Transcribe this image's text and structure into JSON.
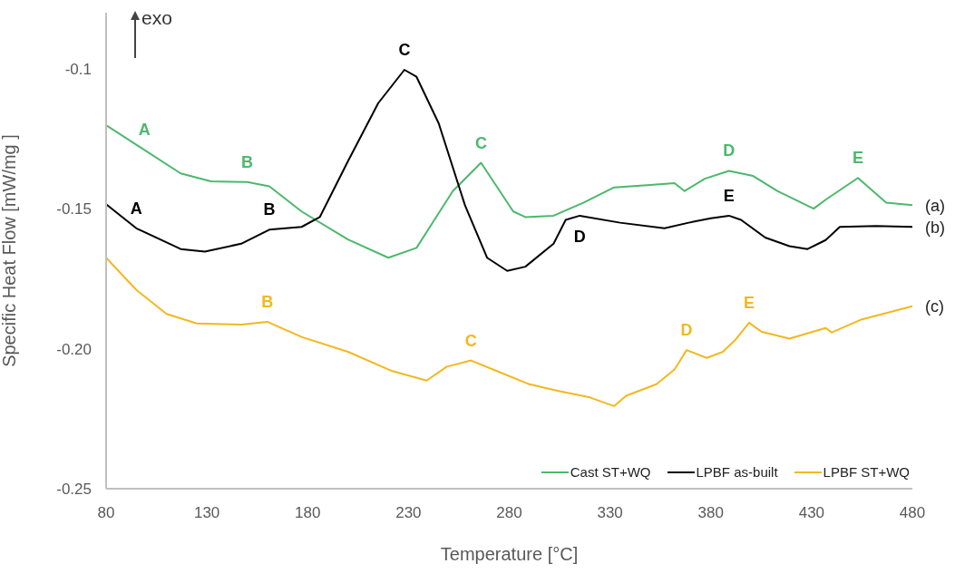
{
  "chart_data": {
    "type": "line",
    "xlabel": "Temperature [°C]",
    "ylabel": "Specific Heat Flow [mW/mg ]",
    "xlim": [
      80,
      480
    ],
    "xticks": [
      80,
      130,
      180,
      230,
      280,
      330,
      380,
      430,
      480
    ],
    "ylim": [
      -0.25,
      -0.08
    ],
    "yticks": [
      -0.1,
      -0.15,
      {
        "value": -0.2,
        "label": "-0.20"
      },
      {
        "value": -0.25,
        "label": "-0.25"
      }
    ],
    "grid": false,
    "legend": "bottom right",
    "marker": "none",
    "line_style": "solid",
    "series": [
      {
        "name": "Cast ST+WQ",
        "color": "#4cb86c",
        "x": [
          80,
          99,
          117,
          132,
          150,
          161,
          177,
          200,
          220,
          234,
          252,
          266,
          282,
          288,
          302,
          317,
          332,
          350,
          362,
          367,
          377,
          389,
          401,
          413,
          431,
          437,
          453,
          467,
          480
        ],
        "values": [
          -0.1202,
          -0.129,
          -0.1374,
          -0.1402,
          -0.1405,
          -0.142,
          -0.151,
          -0.161,
          -0.1675,
          -0.164,
          -0.1437,
          -0.1336,
          -0.151,
          -0.153,
          -0.1525,
          -0.1478,
          -0.1424,
          -0.1415,
          -0.1409,
          -0.1437,
          -0.1393,
          -0.1365,
          -0.1383,
          -0.1437,
          -0.15,
          -0.1468,
          -0.139,
          -0.1478,
          -0.1487
        ]
      },
      {
        "name": "LPBF as-built",
        "color": "#000000",
        "x": [
          80,
          95,
          117,
          129,
          147,
          161,
          177,
          186,
          200,
          215,
          228,
          234,
          245,
          258,
          269,
          279,
          288,
          302,
          308,
          315,
          335,
          357,
          369,
          380,
          389,
          395,
          407,
          419,
          428,
          437,
          444,
          462,
          480
        ],
        "values": [
          -0.1484,
          -0.157,
          -0.1644,
          -0.1653,
          -0.1625,
          -0.1575,
          -0.1565,
          -0.153,
          -0.133,
          -0.1123,
          -0.1004,
          -0.1029,
          -0.1195,
          -0.1487,
          -0.1675,
          -0.1722,
          -0.1707,
          -0.1625,
          -0.154,
          -0.1525,
          -0.155,
          -0.157,
          -0.155,
          -0.1534,
          -0.1525,
          -0.154,
          -0.1603,
          -0.1634,
          -0.1644,
          -0.1612,
          -0.1565,
          -0.1562,
          -0.1565
        ]
      },
      {
        "name": "LPBF ST+WQ",
        "color": "#f2b81e",
        "x": [
          80,
          95,
          110,
          125,
          147,
          160,
          177,
          200,
          222,
          239,
          249,
          261,
          275,
          290,
          305,
          320,
          332,
          338,
          353,
          362,
          368,
          378,
          386,
          392,
          399,
          405,
          419,
          437,
          440,
          455,
          480
        ],
        "values": [
          -0.1675,
          -0.179,
          -0.1876,
          -0.191,
          -0.1914,
          -0.1904,
          -0.1958,
          -0.2011,
          -0.208,
          -0.2114,
          -0.2064,
          -0.2042,
          -0.2083,
          -0.2127,
          -0.2152,
          -0.2174,
          -0.2205,
          -0.2168,
          -0.2127,
          -0.2074,
          -0.2005,
          -0.2033,
          -0.2011,
          -0.197,
          -0.1907,
          -0.1939,
          -0.1964,
          -0.1926,
          -0.1942,
          -0.1895,
          -0.1848
        ]
      }
    ],
    "annotations": [
      "exo",
      "(a)",
      "(b)",
      "(c)",
      {
        "text": "A",
        "x": 99,
        "y": -0.129
      },
      {
        "text": "B",
        "x": 150,
        "y": -0.1405
      },
      {
        "text": "C",
        "x": 266,
        "y": -0.1336
      },
      {
        "text": "D",
        "x": 389,
        "y": -0.1365
      },
      {
        "text": "E",
        "x": 453,
        "y": -0.139
      },
      {
        "text": "A",
        "x": 95,
        "y": -0.157
      },
      {
        "text": "B",
        "x": 161,
        "y": -0.1575
      },
      {
        "text": "C",
        "x": 228,
        "y": -0.1004
      },
      {
        "text": "D",
        "x": 315,
        "y": -0.1525
      },
      {
        "text": "E",
        "x": 389,
        "y": -0.1525
      },
      {
        "text": "B",
        "x": 160,
        "y": -0.1904
      },
      {
        "text": "C",
        "x": 261,
        "y": -0.2042
      },
      {
        "text": "D",
        "x": 368,
        "y": -0.2005
      },
      {
        "text": "E",
        "x": 399,
        "y": -0.1907
      }
    ]
  }
}
